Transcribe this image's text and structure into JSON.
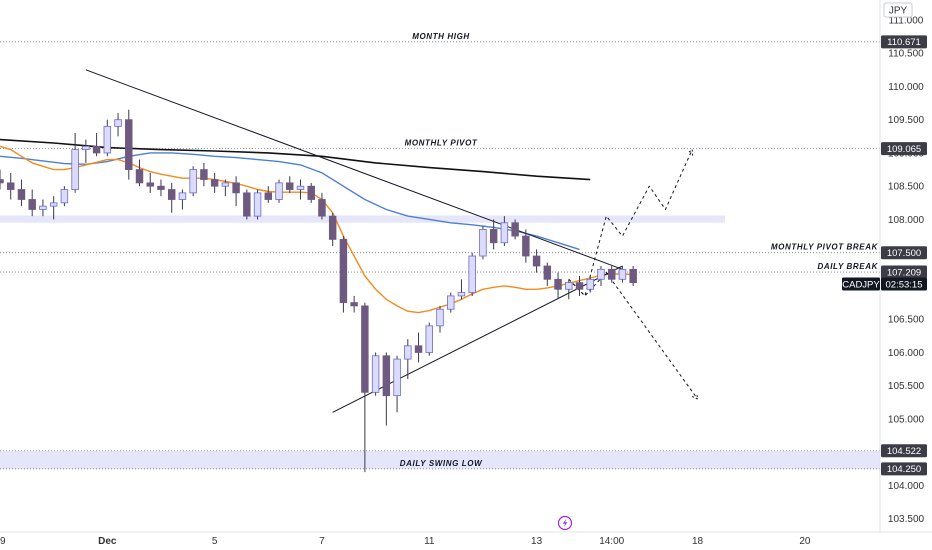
{
  "chart_data": {
    "type": "candlestick",
    "symbol": "CADJPY",
    "currency": "JPY",
    "countdown": "02:53:15",
    "last_price": 107.209,
    "ylim": [
      103.3,
      111.3
    ],
    "yticks": [
      "111.000",
      "110.500",
      "110.000",
      "109.500",
      "109.000",
      "108.500",
      "108.000",
      "107.500",
      "107.000",
      "106.500",
      "106.000",
      "105.500",
      "105.000",
      "104.500",
      "104.000",
      "103.500"
    ],
    "xticks": [
      {
        "label": "9",
        "x": 0
      },
      {
        "label": "Dec",
        "x": 10
      },
      {
        "label": "5",
        "x": 20
      },
      {
        "label": "7",
        "x": 30
      },
      {
        "label": "11",
        "x": 40
      },
      {
        "label": "13",
        "x": 50
      },
      {
        "label": "14:00",
        "x": 57
      },
      {
        "label": "18",
        "x": 65
      },
      {
        "label": "20",
        "x": 75
      }
    ],
    "xlim": [
      0,
      82
    ],
    "candles": [
      [
        108.6,
        108.75,
        108.45,
        108.55
      ],
      [
        108.55,
        108.7,
        108.3,
        108.45
      ],
      [
        108.45,
        108.6,
        108.2,
        108.3
      ],
      [
        108.3,
        108.45,
        108.05,
        108.15
      ],
      [
        108.15,
        108.3,
        108.05,
        108.2
      ],
      [
        108.2,
        108.35,
        108.0,
        108.25
      ],
      [
        108.25,
        108.5,
        108.2,
        108.45
      ],
      [
        108.45,
        109.3,
        108.4,
        109.05
      ],
      [
        109.05,
        109.2,
        108.85,
        109.1
      ],
      [
        109.1,
        109.3,
        108.95,
        109.0
      ],
      [
        109.0,
        109.5,
        108.95,
        109.4
      ],
      [
        109.4,
        109.6,
        109.25,
        109.5
      ],
      [
        109.5,
        109.65,
        108.6,
        108.75
      ],
      [
        108.75,
        108.9,
        108.5,
        108.55
      ],
      [
        108.55,
        108.7,
        108.4,
        108.5
      ],
      [
        108.5,
        108.6,
        108.35,
        108.45
      ],
      [
        108.45,
        108.55,
        108.1,
        108.3
      ],
      [
        108.3,
        108.45,
        108.15,
        108.4
      ],
      [
        108.4,
        108.8,
        108.35,
        108.75
      ],
      [
        108.75,
        108.85,
        108.5,
        108.6
      ],
      [
        108.6,
        108.7,
        108.4,
        108.5
      ],
      [
        108.5,
        108.6,
        108.35,
        108.55
      ],
      [
        108.55,
        108.65,
        108.2,
        108.4
      ],
      [
        108.4,
        108.45,
        108.0,
        108.05
      ],
      [
        108.05,
        108.45,
        108.0,
        108.4
      ],
      [
        108.4,
        108.5,
        108.25,
        108.3
      ],
      [
        108.3,
        108.6,
        108.25,
        108.55
      ],
      [
        108.55,
        108.65,
        108.4,
        108.45
      ],
      [
        108.45,
        108.6,
        108.3,
        108.5
      ],
      [
        108.5,
        108.55,
        108.25,
        108.3
      ],
      [
        108.3,
        108.4,
        108.0,
        108.05
      ],
      [
        108.05,
        108.1,
        107.6,
        107.7
      ],
      [
        107.7,
        107.75,
        106.6,
        106.75
      ],
      [
        106.75,
        106.85,
        106.6,
        106.7
      ],
      [
        106.7,
        106.75,
        104.2,
        105.4
      ],
      [
        105.4,
        106.0,
        105.35,
        105.95
      ],
      [
        105.95,
        106.0,
        104.9,
        105.35
      ],
      [
        105.35,
        105.95,
        105.1,
        105.9
      ],
      [
        105.9,
        106.2,
        105.6,
        106.1
      ],
      [
        106.1,
        106.3,
        105.85,
        106.0
      ],
      [
        106.0,
        106.45,
        105.95,
        106.4
      ],
      [
        106.4,
        106.7,
        106.3,
        106.65
      ],
      [
        106.65,
        106.9,
        106.6,
        106.85
      ],
      [
        106.85,
        107.1,
        106.8,
        106.9
      ],
      [
        106.9,
        107.5,
        106.85,
        107.45
      ],
      [
        107.45,
        107.9,
        107.4,
        107.85
      ],
      [
        107.85,
        108.0,
        107.55,
        107.65
      ],
      [
        107.65,
        108.05,
        107.6,
        107.95
      ],
      [
        107.95,
        108.0,
        107.7,
        107.75
      ],
      [
        107.75,
        107.85,
        107.35,
        107.45
      ],
      [
        107.45,
        107.55,
        107.2,
        107.3
      ],
      [
        107.3,
        107.35,
        107.0,
        107.1
      ],
      [
        107.1,
        107.2,
        106.8,
        106.95
      ],
      [
        106.95,
        107.1,
        106.8,
        107.05
      ],
      [
        107.05,
        107.15,
        106.85,
        106.95
      ],
      [
        106.95,
        107.15,
        106.9,
        107.1
      ],
      [
        107.1,
        107.3,
        107.0,
        107.25
      ],
      [
        107.25,
        107.3,
        107.05,
        107.1
      ],
      [
        107.1,
        107.3,
        107.05,
        107.25
      ],
      [
        107.25,
        107.3,
        107.0,
        107.05
      ]
    ],
    "ema_orange": [
      [
        0,
        109.1
      ],
      [
        1,
        109.05
      ],
      [
        2,
        108.95
      ],
      [
        3,
        108.85
      ],
      [
        4,
        108.8
      ],
      [
        5,
        108.75
      ],
      [
        6,
        108.75
      ],
      [
        7,
        108.78
      ],
      [
        8,
        108.82
      ],
      [
        9,
        108.86
      ],
      [
        10,
        108.9
      ],
      [
        11,
        108.9
      ],
      [
        12,
        108.85
      ],
      [
        13,
        108.78
      ],
      [
        14,
        108.72
      ],
      [
        15,
        108.68
      ],
      [
        16,
        108.65
      ],
      [
        17,
        108.62
      ],
      [
        18,
        108.62
      ],
      [
        19,
        108.62
      ],
      [
        20,
        108.6
      ],
      [
        21,
        108.57
      ],
      [
        22,
        108.54
      ],
      [
        23,
        108.5
      ],
      [
        24,
        108.45
      ],
      [
        25,
        108.42
      ],
      [
        26,
        108.41
      ],
      [
        27,
        108.41
      ],
      [
        28,
        108.41
      ],
      [
        29,
        108.4
      ],
      [
        30,
        108.3
      ],
      [
        31,
        108.1
      ],
      [
        32,
        107.75
      ],
      [
        33,
        107.45
      ],
      [
        34,
        107.15
      ],
      [
        35,
        106.95
      ],
      [
        36,
        106.8
      ],
      [
        37,
        106.7
      ],
      [
        38,
        106.62
      ],
      [
        39,
        106.6
      ],
      [
        40,
        106.63
      ],
      [
        41,
        106.68
      ],
      [
        42,
        106.73
      ],
      [
        43,
        106.8
      ],
      [
        44,
        106.88
      ],
      [
        45,
        106.95
      ],
      [
        46,
        106.98
      ],
      [
        47,
        107.0
      ],
      [
        48,
        106.98
      ],
      [
        49,
        106.95
      ],
      [
        50,
        106.95
      ],
      [
        51,
        106.97
      ],
      [
        52,
        107.0
      ],
      [
        53,
        107.04
      ],
      [
        54,
        107.08
      ],
      [
        55,
        107.12
      ],
      [
        56,
        107.16
      ],
      [
        57,
        107.18
      ],
      [
        58,
        107.18
      ],
      [
        59,
        107.17
      ]
    ],
    "ema_blue": [
      [
        0,
        108.95
      ],
      [
        2,
        108.92
      ],
      [
        4,
        108.88
      ],
      [
        6,
        108.84
      ],
      [
        8,
        108.83
      ],
      [
        10,
        108.87
      ],
      [
        12,
        108.95
      ],
      [
        14,
        109.0
      ],
      [
        16,
        109.0
      ],
      [
        18,
        108.98
      ],
      [
        20,
        108.95
      ],
      [
        22,
        108.93
      ],
      [
        24,
        108.9
      ],
      [
        26,
        108.87
      ],
      [
        28,
        108.82
      ],
      [
        30,
        108.7
      ],
      [
        32,
        108.5
      ],
      [
        34,
        108.3
      ],
      [
        36,
        108.15
      ],
      [
        38,
        108.05
      ],
      [
        40,
        108.0
      ],
      [
        42,
        107.95
      ],
      [
        44,
        107.92
      ],
      [
        46,
        107.88
      ],
      [
        48,
        107.83
      ],
      [
        50,
        107.75
      ],
      [
        52,
        107.65
      ],
      [
        54,
        107.55
      ]
    ],
    "sma_black": [
      [
        0,
        109.2
      ],
      [
        5,
        109.15
      ],
      [
        10,
        109.08
      ],
      [
        15,
        109.05
      ],
      [
        20,
        109.03
      ],
      [
        25,
        109.0
      ],
      [
        30,
        108.95
      ],
      [
        35,
        108.85
      ],
      [
        40,
        108.78
      ],
      [
        45,
        108.72
      ],
      [
        50,
        108.65
      ],
      [
        55,
        108.6
      ]
    ],
    "trendline_down": [
      [
        8,
        110.25
      ],
      [
        58,
        107.25
      ]
    ],
    "trendline_up": [
      [
        31,
        105.1
      ],
      [
        58,
        107.3
      ]
    ],
    "projection_up": [
      [
        53,
        107.1
      ],
      [
        54.5,
        106.85
      ],
      [
        56.5,
        108.05
      ],
      [
        58,
        107.75
      ],
      [
        60.5,
        108.5
      ],
      [
        62,
        108.15
      ],
      [
        64.5,
        109.05
      ]
    ],
    "projection_down": [
      [
        53,
        107.1
      ],
      [
        54.5,
        106.85
      ],
      [
        56.5,
        107.2
      ],
      [
        65,
        105.3
      ]
    ],
    "levels": [
      {
        "label": "MONTH HIGH",
        "value": 110.671,
        "value_label": "110.671",
        "style": "dotted"
      },
      {
        "label": "MONTHLY PIVOT",
        "value": 109.065,
        "value_label": "109.065",
        "style": "dotted"
      },
      {
        "label": "MONTHLY PIVOT BREAK",
        "value": 107.5,
        "value_label": "107.500",
        "style": "dotted"
      },
      {
        "label": "DAILY BREAK",
        "value": 107.209,
        "value_label": "107.209",
        "style": "dotted"
      },
      {
        "label": "",
        "value": 104.522,
        "value_label": "104.522",
        "style": "dotted"
      },
      {
        "label": "DAILY SWING LOW",
        "value": 104.25,
        "value_label": "104.250",
        "style": "dotted"
      }
    ],
    "zones": [
      {
        "from": 107.95,
        "to": 108.06
      },
      {
        "from": 104.25,
        "to": 104.52
      }
    ],
    "colors": {
      "bull_body": "#dcdcfa",
      "bull_border": "#6a6ad0",
      "bear_body": "#6e5a80",
      "wick": "#3a3a4a",
      "ema_orange": "#f28c1e",
      "ema_blue": "#4d7fd6",
      "sma_black": "#111111",
      "zone": "#e6e6fb",
      "tag": "#3c3c46"
    }
  }
}
